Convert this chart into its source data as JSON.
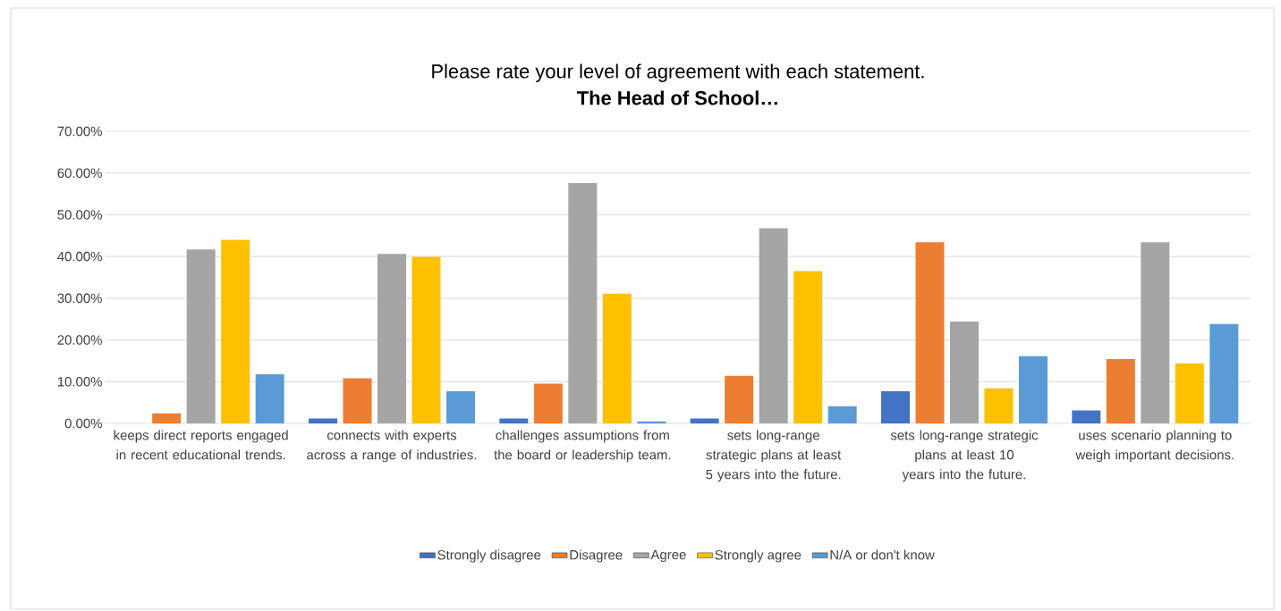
{
  "chart_data": {
    "type": "bar",
    "title": "Please rate your level of agreement with each statement.",
    "subtitle": "The Head of School…",
    "categories": [
      "keeps direct reports engaged in recent educational trends.",
      "connects with experts across a range of industries.",
      "challenges assumptions from the board or leadership team.",
      "sets long-range strategic plans at least 5 years into the future.",
      "sets long-range strategic plans at least 10 years into the future.",
      "uses scenario planning to weigh important decisions."
    ],
    "series": [
      {
        "name": "Strongly disagree",
        "color": "#4472c4",
        "values": [
          0,
          1.2,
          1.2,
          1.2,
          7.7,
          3.1
        ]
      },
      {
        "name": "Disagree",
        "color": "#ed7d31",
        "values": [
          2.4,
          10.8,
          9.5,
          11.4,
          43.4,
          15.4
        ]
      },
      {
        "name": "Agree",
        "color": "#a5a5a5",
        "values": [
          41.7,
          40.6,
          57.6,
          46.8,
          24.4,
          43.4
        ]
      },
      {
        "name": "Strongly agree",
        "color": "#ffc000",
        "values": [
          44.0,
          39.9,
          31.1,
          36.5,
          8.4,
          14.4
        ]
      },
      {
        "name": "N/A or don't know",
        "color": "#5b9bd5",
        "values": [
          11.8,
          7.7,
          0.5,
          4.1,
          16.1,
          23.8
        ]
      }
    ],
    "ylim": [
      0,
      70
    ],
    "yticks": [
      {
        "value": 0,
        "label": "0.00%"
      },
      {
        "value": 10,
        "label": "10.00%"
      },
      {
        "value": 20,
        "label": "20.00%"
      },
      {
        "value": 30,
        "label": "30.00%"
      },
      {
        "value": 40,
        "label": "40.00%"
      },
      {
        "value": 50,
        "label": "50.00%"
      },
      {
        "value": 60,
        "label": "60.00%"
      },
      {
        "value": 70,
        "label": "70.00%"
      }
    ],
    "grid": "y",
    "legend": "bottom"
  }
}
